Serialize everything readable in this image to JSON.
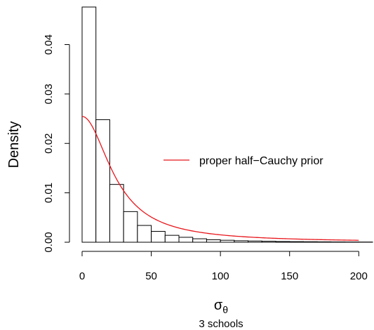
{
  "chart_data": {
    "type": "bar",
    "subtype": "histogram",
    "xlabel": "σ",
    "xlabel_subscript": "θ",
    "ylabel": "Density",
    "caption": "3 schools",
    "xlim": [
      0,
      210
    ],
    "ylim": [
      0,
      0.0476
    ],
    "x_ticks": [
      0,
      50,
      100,
      150,
      200
    ],
    "x_tick_labels": [
      "0",
      "50",
      "100",
      "150",
      "200"
    ],
    "y_ticks": [
      0.0,
      0.01,
      0.02,
      0.03,
      0.04
    ],
    "y_tick_labels": [
      "0.00",
      "0.01",
      "0.02",
      "0.03",
      "0.04"
    ],
    "bin_width": 10,
    "bins": [
      {
        "x0": 0,
        "x1": 10,
        "density": 0.0476
      },
      {
        "x0": 10,
        "x1": 20,
        "density": 0.0248
      },
      {
        "x0": 20,
        "x1": 30,
        "density": 0.0117
      },
      {
        "x0": 30,
        "x1": 40,
        "density": 0.0062
      },
      {
        "x0": 40,
        "x1": 50,
        "density": 0.0034
      },
      {
        "x0": 50,
        "x1": 60,
        "density": 0.0022
      },
      {
        "x0": 60,
        "x1": 70,
        "density": 0.0014
      },
      {
        "x0": 70,
        "x1": 80,
        "density": 0.001
      },
      {
        "x0": 80,
        "x1": 90,
        "density": 0.0007
      },
      {
        "x0": 90,
        "x1": 100,
        "density": 0.0005
      },
      {
        "x0": 100,
        "x1": 110,
        "density": 0.0004
      },
      {
        "x0": 110,
        "x1": 120,
        "density": 0.0003
      },
      {
        "x0": 120,
        "x1": 130,
        "density": 0.00025
      },
      {
        "x0": 130,
        "x1": 140,
        "density": 0.0002
      },
      {
        "x0": 140,
        "x1": 150,
        "density": 0.00015
      },
      {
        "x0": 150,
        "x1": 160,
        "density": 0.00012
      },
      {
        "x0": 160,
        "x1": 170,
        "density": 0.0001
      },
      {
        "x0": 170,
        "x1": 180,
        "density": 8e-05
      },
      {
        "x0": 180,
        "x1": 190,
        "density": 6e-05
      },
      {
        "x0": 190,
        "x1": 200,
        "density": 5e-05
      },
      {
        "x0": 200,
        "x1": 210,
        "density": 4e-05
      }
    ],
    "series": [
      {
        "name": "proper half−Cauchy prior",
        "type": "line",
        "color": "#e8161b",
        "x_range": [
          0,
          200
        ],
        "curve": {
          "family": "half-Cauchy",
          "scale": 25
        }
      }
    ],
    "legend": {
      "placement": "right-middle",
      "entries": [
        "proper half−Cauchy prior"
      ]
    },
    "bar_fill": "#ffffff",
    "bar_stroke": "#000000",
    "grid": false
  }
}
